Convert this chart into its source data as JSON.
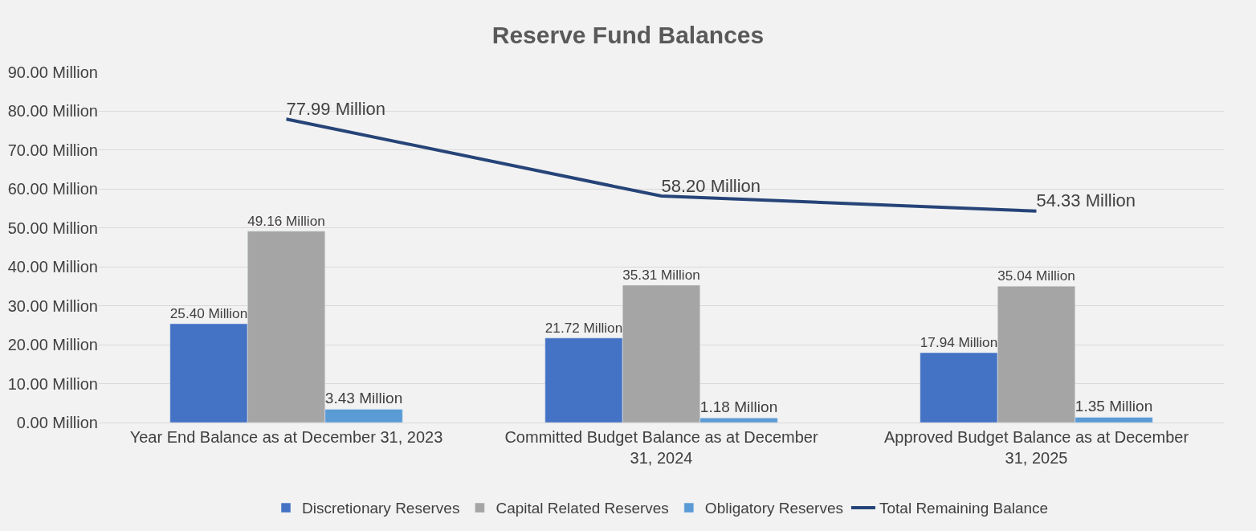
{
  "chart_data": {
    "type": "bar",
    "title": "Reserve Fund Balances",
    "categories": [
      "Year End Balance as at December 31, 2023",
      "Committed Budget Balance as at December 31, 2024",
      "Approved Budget Balance as at December 31, 2025"
    ],
    "series": [
      {
        "name": "Discretionary Reserves",
        "color": "#4472c4",
        "values": [
          25.4,
          21.72,
          17.94
        ],
        "value_labels": [
          "25.40 Million",
          "21.72 Million",
          "17.94 Million"
        ]
      },
      {
        "name": "Capital Related Reserves",
        "color": "#a5a5a5",
        "values": [
          49.16,
          35.31,
          35.04
        ],
        "value_labels": [
          "49.16 Million",
          "35.31 Million",
          "35.04 Million"
        ]
      },
      {
        "name": "Obligatory Reserves",
        "color": "#5b9bd5",
        "values": [
          3.43,
          1.18,
          1.35
        ],
        "value_labels": [
          "3.43 Million",
          "1.18 Million",
          "1.35 Million"
        ]
      },
      {
        "name": "Total Remaining Balance",
        "type": "line",
        "color": "#264478",
        "values": [
          77.99,
          58.2,
          54.33
        ],
        "value_labels": [
          "77.99 Million",
          "58.20 Million",
          "54.33 Million"
        ]
      }
    ],
    "ylim": [
      0,
      90
    ],
    "yticks": [
      {
        "value": 0,
        "label": "0.00 Million"
      },
      {
        "value": 10,
        "label": "10.00 Million"
      },
      {
        "value": 20,
        "label": "20.00 Million"
      },
      {
        "value": 30,
        "label": "30.00 Million"
      },
      {
        "value": 40,
        "label": "40.00 Million"
      },
      {
        "value": 50,
        "label": "50.00 Million"
      },
      {
        "value": 60,
        "label": "60.00 Million"
      },
      {
        "value": 70,
        "label": "70.00 Million"
      },
      {
        "value": 80,
        "label": "80.00 Million"
      },
      {
        "value": 90,
        "label": "90.00 Million"
      }
    ],
    "grid": "y",
    "legend": "bottom",
    "marker": "none",
    "line_style": "solid"
  }
}
